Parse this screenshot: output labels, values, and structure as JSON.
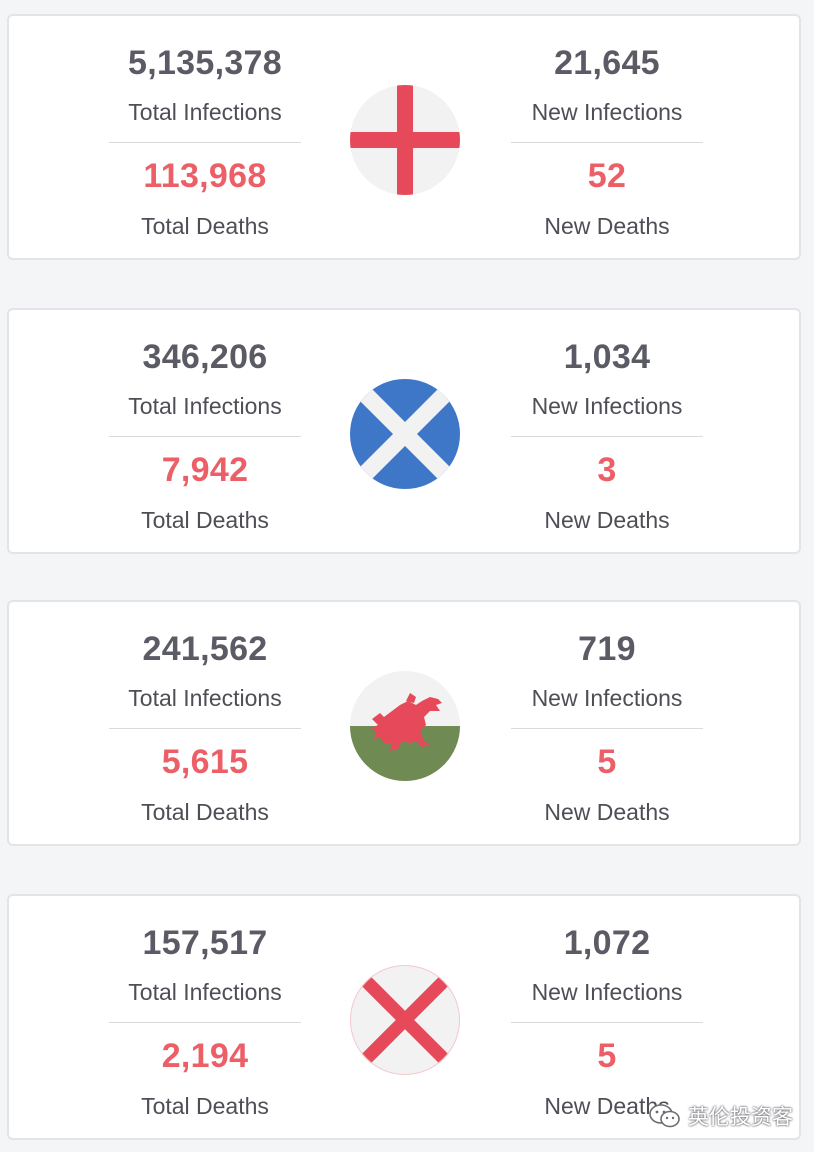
{
  "colors": {
    "page_background": "#f4f5f7",
    "card_background": "#ffffff",
    "infections_color": "#5b5b66",
    "deaths_color": "#ec5f67"
  },
  "regions": [
    {
      "flag_icon": "england-flag-icon",
      "total_infections": "5,135,378",
      "total_infections_label": "Total Infections",
      "total_deaths": "113,968",
      "total_deaths_label": "Total Deaths",
      "new_infections": "21,645",
      "new_infections_label": "New Infections",
      "new_deaths": "52",
      "new_deaths_label": "New Deaths"
    },
    {
      "flag_icon": "scotland-flag-icon",
      "total_infections": "346,206",
      "total_infections_label": "Total Infections",
      "total_deaths": "7,942",
      "total_deaths_label": "Total Deaths",
      "new_infections": "1,034",
      "new_infections_label": "New Infections",
      "new_deaths": "3",
      "new_deaths_label": "New Deaths"
    },
    {
      "flag_icon": "wales-flag-icon",
      "total_infections": "241,562",
      "total_infections_label": "Total Infections",
      "total_deaths": "5,615",
      "total_deaths_label": "Total Deaths",
      "new_infections": "719",
      "new_infections_label": "New Infections",
      "new_deaths": "5",
      "new_deaths_label": "New Deaths"
    },
    {
      "flag_icon": "northern-ireland-saltire-flag-icon",
      "total_infections": "157,517",
      "total_infections_label": "Total Infections",
      "total_deaths": "2,194",
      "total_deaths_label": "Total Deaths",
      "new_infections": "1,072",
      "new_infections_label": "New Infections",
      "new_deaths": "5",
      "new_deaths_label": "New Deaths"
    }
  ],
  "watermark": {
    "icon": "wechat-icon",
    "text": "英伦投资客"
  }
}
